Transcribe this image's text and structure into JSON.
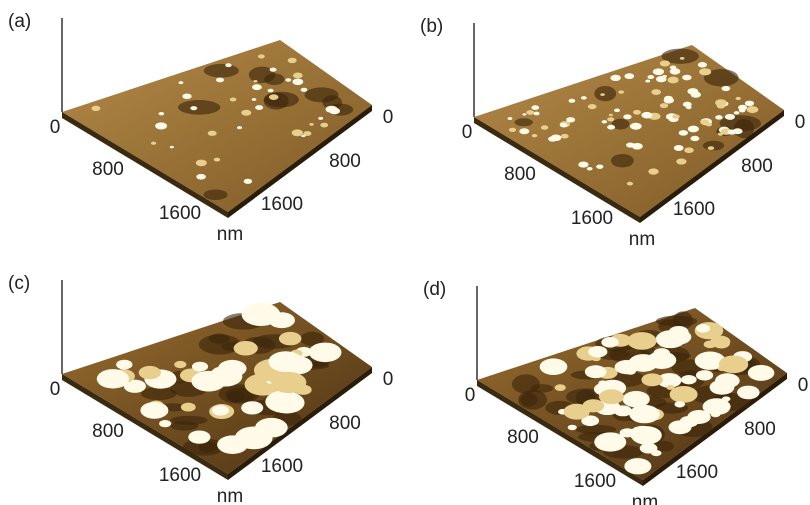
{
  "panels": [
    {
      "label": "(a)",
      "left_axis": [
        0,
        800,
        1600
      ],
      "right_axis": [
        0,
        800,
        1600
      ],
      "unit": "nm"
    },
    {
      "label": "(b)",
      "left_axis": [
        0,
        800,
        1600
      ],
      "right_axis": [
        0,
        800,
        1600
      ],
      "unit": "nm"
    },
    {
      "label": "(c)",
      "left_axis": [
        0,
        800,
        1600
      ],
      "right_axis": [
        0,
        800,
        1600
      ],
      "unit": "nm"
    },
    {
      "label": "(d)",
      "left_axis": [
        0,
        800,
        1600
      ],
      "right_axis": [
        0,
        800,
        1600
      ],
      "unit": "nm"
    }
  ]
}
